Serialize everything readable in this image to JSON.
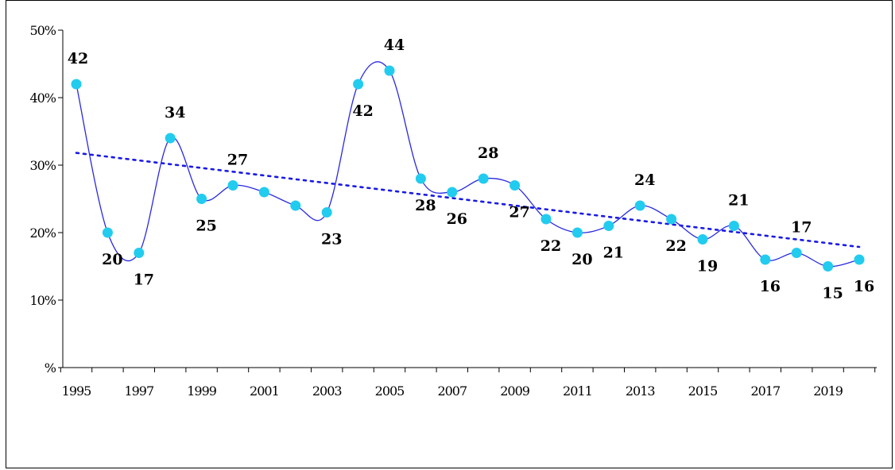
{
  "chart_data": {
    "type": "line",
    "title": "",
    "xlabel": "",
    "ylabel": "",
    "x": [
      1995,
      1996,
      1997,
      1998,
      1999,
      2000,
      2001,
      2002,
      2003,
      2004,
      2005,
      2006,
      2007,
      2008,
      2009,
      2010,
      2011,
      2012,
      2013,
      2014,
      2015,
      2016,
      2017,
      2018,
      2019,
      2020
    ],
    "x_tick_labels": [
      "1995",
      "1997",
      "1999",
      "2001",
      "2003",
      "2005",
      "2007",
      "2009",
      "2011",
      "2013",
      "2015",
      "2017",
      "2019"
    ],
    "y_tick_labels": [
      "%",
      "10%",
      "20%",
      "30%",
      "40%",
      "50%"
    ],
    "ylim": [
      0,
      50
    ],
    "y_unit": "%",
    "grid": false,
    "series": [
      {
        "values": [
          42,
          20,
          17,
          34,
          25,
          27,
          26,
          24,
          23,
          42,
          44,
          28,
          26,
          28,
          27,
          22,
          20,
          21,
          24,
          22,
          19,
          21,
          16,
          17,
          15,
          16
        ],
        "data_labels": [
          "42",
          "20",
          "17",
          "34",
          "25",
          "27",
          "",
          "",
          "23",
          "42",
          "44",
          "28",
          "26",
          "28",
          "27",
          "22",
          "20",
          "21",
          "24",
          "22",
          "19",
          "21",
          "16",
          "17",
          "15",
          "16"
        ],
        "line_color": "#2a2ae0",
        "marker_color": "#22ccee",
        "smooth": true
      }
    ],
    "trendline": {
      "type": "linear",
      "style": "dotted",
      "color": "#1a1ae6"
    }
  }
}
